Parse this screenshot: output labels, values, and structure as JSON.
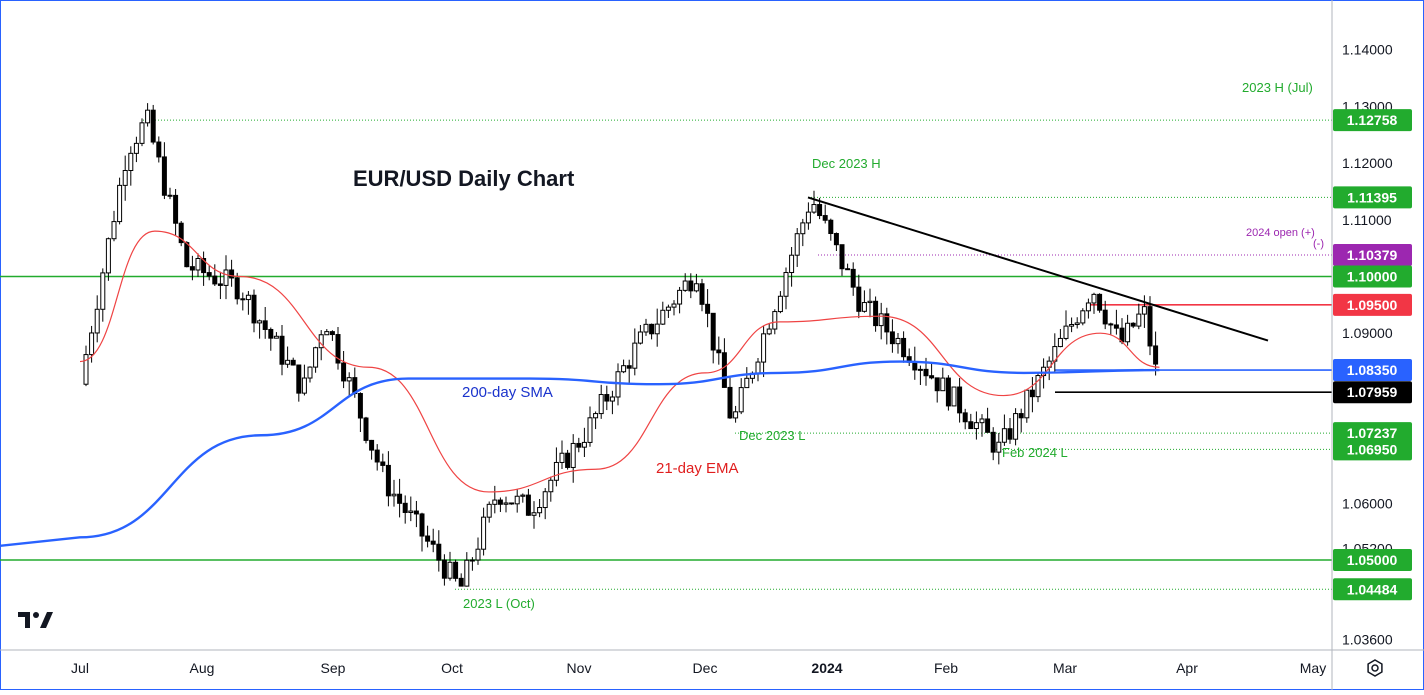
{
  "chart_data": {
    "type": "candlestick",
    "title": "EUR/USD Daily Chart",
    "x_ticks": [
      "Jul",
      "Aug",
      "Sep",
      "Oct",
      "Nov",
      "Dec",
      "2024",
      "Feb",
      "Mar",
      "Apr",
      "May"
    ],
    "y_ticks": [
      "1.14000",
      "1.13000",
      "1.12000",
      "1.11000",
      "1.09000",
      "1.06000",
      "1.05200",
      "1.03600"
    ],
    "ylim": [
      1.036,
      1.14
    ],
    "grid": false,
    "colors": {
      "up": "#ffffff",
      "down": "#000000",
      "ema": "#ef4444",
      "sma": "#2962ff",
      "green_level": "#22ab2e",
      "red_level": "#f23645",
      "purple_level": "#9c27b0",
      "trendline": "#000000"
    },
    "series": [
      {
        "name": "EUR/USD",
        "ohlc_anchor_points": [
          [
            "Jul-01",
            1.081
          ],
          [
            "Jul-13",
            1.1225
          ],
          [
            "Jul-18",
            1.1276
          ],
          [
            "Jul-28",
            1.102
          ],
          [
            "Aug-10",
            1.098
          ],
          [
            "Aug-25",
            1.08
          ],
          [
            "Aug-30",
            1.093
          ],
          [
            "Sep-14",
            1.064
          ],
          [
            "Oct-03",
            1.0448
          ],
          [
            "Oct-12",
            1.062
          ],
          [
            "Oct-20",
            1.059
          ],
          [
            "Nov-03",
            1.073
          ],
          [
            "Nov-15",
            1.088
          ],
          [
            "Nov-29",
            1.101
          ],
          [
            "Dec-08",
            1.074
          ],
          [
            "Dec-28",
            1.1139
          ],
          [
            "Jan-10",
            1.095
          ],
          [
            "Jan-25",
            1.085
          ],
          [
            "Feb-14",
            1.0695
          ],
          [
            "Mar-08",
            1.0981
          ],
          [
            "Mar-15",
            1.088
          ],
          [
            "Mar-21",
            1.094
          ],
          [
            "Mar-25",
            1.08
          ]
        ]
      },
      {
        "name": "21-day EMA",
        "points": [
          [
            "Jul-01",
            1.085
          ],
          [
            "Jul-20",
            1.108
          ],
          [
            "Aug-10",
            1.1
          ],
          [
            "Sep-10",
            1.084
          ],
          [
            "Oct-10",
            1.062
          ],
          [
            "Nov-05",
            1.066
          ],
          [
            "Dec-01",
            1.083
          ],
          [
            "Dec-20",
            1.092
          ],
          [
            "Jan-15",
            1.093
          ],
          [
            "Feb-15",
            1.079
          ],
          [
            "Mar-10",
            1.09
          ],
          [
            "Mar-25",
            1.084
          ]
        ]
      },
      {
        "name": "200-day SMA",
        "points": [
          [
            "Jul-01",
            1.054
          ],
          [
            "Aug-15",
            1.072
          ],
          [
            "Sep-20",
            1.082
          ],
          [
            "Oct-20",
            1.082
          ],
          [
            "Nov-20",
            1.081
          ],
          [
            "Dec-20",
            1.083
          ],
          [
            "Jan-20",
            1.085
          ],
          [
            "Feb-20",
            1.083
          ],
          [
            "Mar-25",
            1.0835
          ]
        ]
      }
    ],
    "levels": [
      {
        "value": "1.12758",
        "annotation": "2023 H (Jul)",
        "color": "#22ab2e"
      },
      {
        "value": "1.11395",
        "annotation": "Dec 2023 H",
        "color": "#22ab2e"
      },
      {
        "value": "1.10379",
        "annotation": "2024 open (+)",
        "annotation2": "(-)",
        "color": "#9c27b0"
      },
      {
        "value": "1.10000",
        "annotation": "",
        "color": "#22ab2e"
      },
      {
        "value": "1.09500",
        "annotation": "",
        "color": "#f23645"
      },
      {
        "value": "1.08350",
        "annotation": "",
        "color": "#2962ff"
      },
      {
        "value": "1.07959",
        "annotation": "",
        "color": "#000000"
      },
      {
        "value": "1.07237",
        "annotation": "Dec 2023 L",
        "color": "#22ab2e"
      },
      {
        "value": "1.06950",
        "annotation": "Feb 2024 L",
        "color": "#22ab2e"
      },
      {
        "value": "1.05000",
        "annotation": "",
        "color": "#22ab2e"
      },
      {
        "value": "1.04484",
        "annotation": "2023 L (Oct)",
        "color": "#22ab2e"
      }
    ],
    "annotations": {
      "sma_label": "200-day SMA",
      "ema_label": "21-day EMA"
    }
  },
  "ui": {
    "logo_text": "17",
    "settings_icon": "gear-icon"
  }
}
